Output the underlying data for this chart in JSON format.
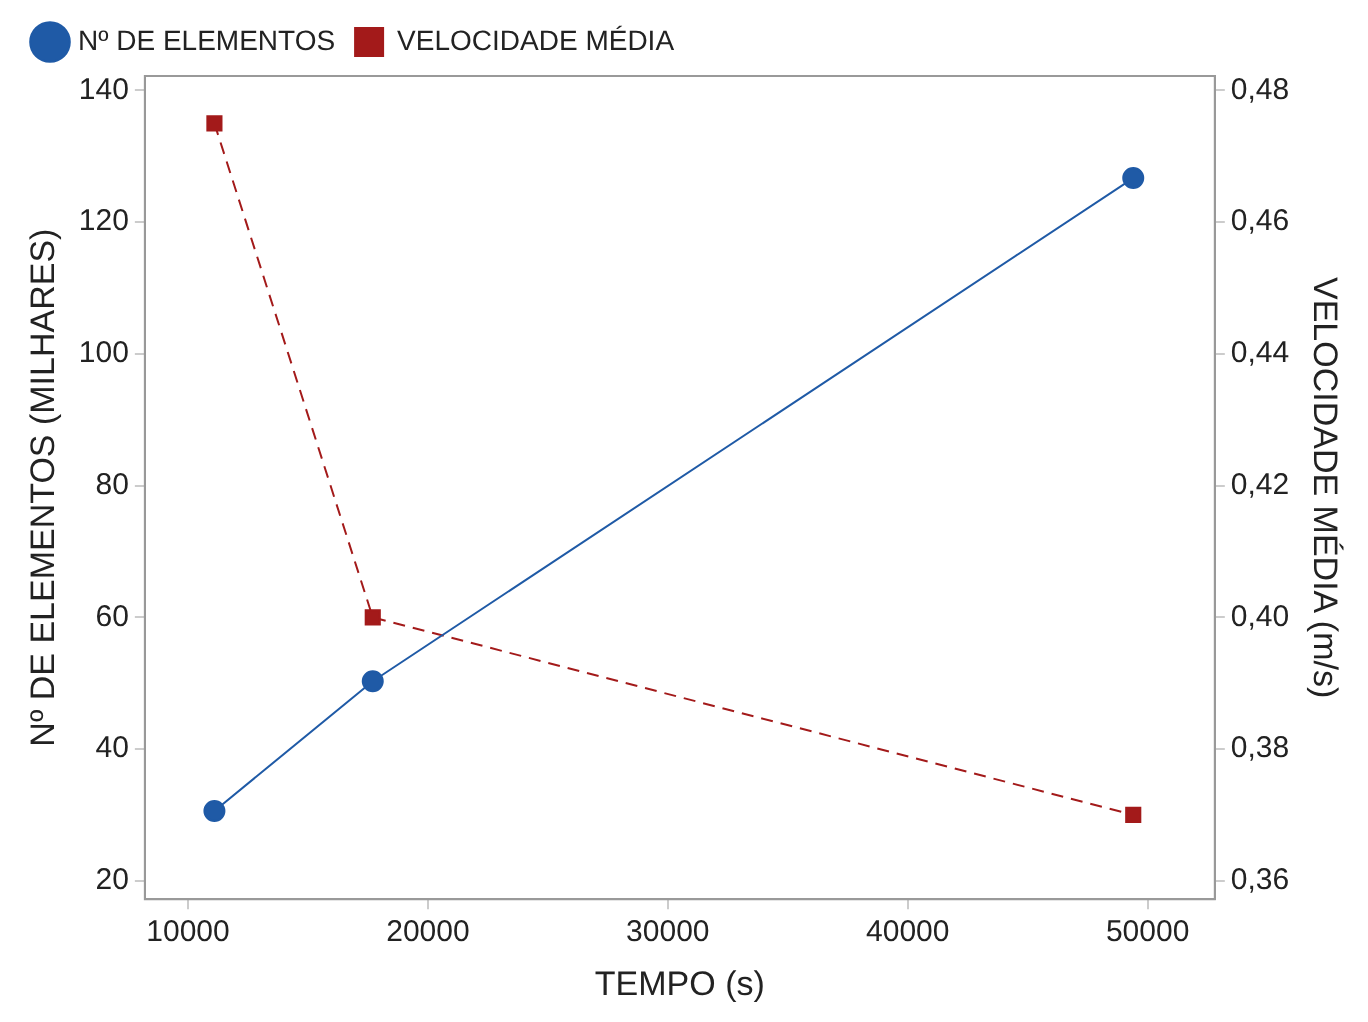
{
  "chart_data": {
    "type": "line",
    "xlabel": "TEMPO (s)",
    "ylabel": "Nº DE ELEMENTOS (MILHARES)",
    "y2label": "VELOCIDADE MÉDIA (m/s)",
    "x": [
      11100,
      17700,
      49400
    ],
    "series": [
      {
        "name": "Nº DE ELEMENTOS",
        "color": "#1f5aa6",
        "values": [
          30.6,
          50.3,
          126.7
        ],
        "marker": "circle",
        "line_style": "solid"
      },
      {
        "name": "VELOCIDADE MÉDIA",
        "color": "#a31a1a",
        "values": [
          0.475,
          0.4,
          0.37
        ],
        "axis": "y2",
        "marker": "square",
        "line_style": "dashed"
      }
    ],
    "xlim": [
      8200,
      52800
    ],
    "xticks": [
      10000,
      20000,
      30000,
      40000,
      50000
    ],
    "ylim": [
      17.2,
      142.2
    ],
    "yticks": [
      20,
      40,
      60,
      80,
      100,
      120,
      140
    ],
    "y2lim": [
      0.3572,
      0.4822
    ],
    "y2ticks": [
      {
        "value": 0.36,
        "label": "0,36"
      },
      {
        "value": 0.38,
        "label": "0,38"
      },
      {
        "value": 0.4,
        "label": "0,40"
      },
      {
        "value": 0.42,
        "label": "0,42"
      },
      {
        "value": 0.44,
        "label": "0,44"
      },
      {
        "value": 0.46,
        "label": "0,46"
      },
      {
        "value": 0.48,
        "label": "0,48"
      }
    ],
    "grid": false,
    "legend": "top left"
  }
}
